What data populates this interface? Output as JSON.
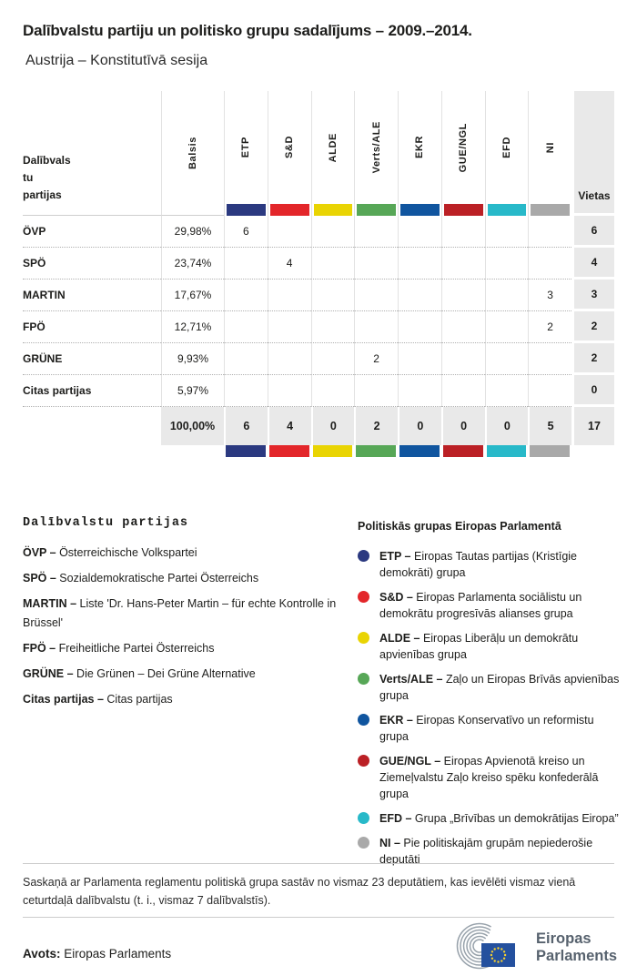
{
  "title": "Dalībvalstu partiju un politisko grupu sadalījums – 2009.–2014.",
  "subtitle": "Austrija – Konstitutīvā sesija",
  "table": {
    "party_header_lines": [
      "Dalībvals",
      "tu",
      "partijas"
    ],
    "votes_header": "Balsis",
    "seats_header": "Vietas",
    "groups": [
      {
        "code": "ETP",
        "color": "#2b3980"
      },
      {
        "code": "S&D",
        "color": "#e3262a"
      },
      {
        "code": "ALDE",
        "color": "#e9d403"
      },
      {
        "code": "Verts/ALE",
        "color": "#57a757"
      },
      {
        "code": "EKR",
        "color": "#10559f"
      },
      {
        "code": "GUE/NGL",
        "color": "#bb2025"
      },
      {
        "code": "EFD",
        "color": "#28b9c9"
      },
      {
        "code": "NI",
        "color": "#a9a9a9"
      }
    ],
    "rows": [
      {
        "party": "ÖVP",
        "votes": "29,98%",
        "seats": [
          "6",
          "",
          "",
          "",
          "",
          "",
          "",
          ""
        ],
        "total": "6"
      },
      {
        "party": "SPÖ",
        "votes": "23,74%",
        "seats": [
          "",
          "4",
          "",
          "",
          "",
          "",
          "",
          ""
        ],
        "total": "4"
      },
      {
        "party": "MARTIN",
        "votes": "17,67%",
        "seats": [
          "",
          "",
          "",
          "",
          "",
          "",
          "",
          "3"
        ],
        "total": "3"
      },
      {
        "party": "FPÖ",
        "votes": "12,71%",
        "seats": [
          "",
          "",
          "",
          "",
          "",
          "",
          "",
          "2"
        ],
        "total": "2"
      },
      {
        "party": "GRÜNE",
        "votes": "9,93%",
        "seats": [
          "",
          "",
          "",
          "2",
          "",
          "",
          "",
          ""
        ],
        "total": "2"
      },
      {
        "party": "Citas partijas",
        "votes": "5,97%",
        "seats": [
          "",
          "",
          "",
          "",
          "",
          "",
          "",
          ""
        ],
        "total": "0"
      }
    ],
    "total_row": {
      "votes": "100,00%",
      "seats": [
        "6",
        "4",
        "0",
        "2",
        "0",
        "0",
        "0",
        "5"
      ],
      "total": "17"
    }
  },
  "party_legend": {
    "heading": "Dalībvalstu partijas",
    "sep": " – ",
    "items": [
      {
        "abbr": "ÖVP",
        "name": "Österreichische Volkspartei"
      },
      {
        "abbr": "SPÖ",
        "name": "Sozialdemokratische Partei Österreichs"
      },
      {
        "abbr": "MARTIN",
        "name": "Liste 'Dr. Hans-Peter Martin – für echte Kontrolle in Brüssel'"
      },
      {
        "abbr": "FPÖ",
        "name": "Freiheitliche Partei Österreichs"
      },
      {
        "abbr": "GRÜNE",
        "name": "Die Grünen – Dei Grüne Alternative"
      },
      {
        "abbr": "Citas partijas",
        "name": "Citas partijas"
      }
    ]
  },
  "group_legend": {
    "heading": "Politiskās grupas Eiropas Parlamentā",
    "sep": " – ",
    "items": [
      {
        "abbr": "ETP",
        "color": "#2b3980",
        "name": "Eiropas Tautas partijas (Kristīgie demokrāti) grupa"
      },
      {
        "abbr": "S&D",
        "color": "#e3262a",
        "name": "Eiropas Parlamenta sociālistu un demokrātu progresīvās alianses grupa"
      },
      {
        "abbr": "ALDE",
        "color": "#e9d403",
        "name": "Eiropas Liberāļu un demokrātu apvienības grupa"
      },
      {
        "abbr": "Verts/ALE",
        "color": "#57a757",
        "name": "Zaļo un Eiropas Brīvās apvienības grupa"
      },
      {
        "abbr": "EKR",
        "color": "#10559f",
        "name": "Eiropas Konservatīvo un reformistu grupa"
      },
      {
        "abbr": "GUE/NGL",
        "color": "#bb2025",
        "name": "Eiropas Apvienotā kreiso un Ziemeļvalstu Zaļo kreiso spēku konfederālā grupa"
      },
      {
        "abbr": "EFD",
        "color": "#28b9c9",
        "name": "Grupa „Brīvības un demokrātijas Eiropa”"
      },
      {
        "abbr": "NI",
        "color": "#a9a9a9",
        "name": "Pie politiskajām grupām nepiederošie deputāti"
      }
    ]
  },
  "footnote": "Saskaņā ar Parlamenta reglamentu politiskā grupa sastāv no vismaz 23 deputātiem, kas ievēlēti vismaz vienā ceturtdaļā dalībvalstu (t. i., vismaz 7 dalībvalstīs).",
  "source": {
    "label": "Avots:",
    "value": "Eiropas Parlaments"
  },
  "logo": {
    "line1": "Eiropas",
    "line2": "Parlaments"
  },
  "chart_data": {
    "type": "table",
    "title": "Dalībvalstu partiju un politisko grupu sadalījums – 2009.–2014.",
    "subtitle": "Austrija – Konstitutīvā sesija",
    "columns": [
      "Dalībvalstu partijas",
      "Balsis",
      "ETP",
      "S&D",
      "ALDE",
      "Verts/ALE",
      "EKR",
      "GUE/NGL",
      "EFD",
      "NI",
      "Vietas"
    ],
    "rows": [
      [
        "ÖVP",
        "29,98%",
        6,
        "",
        "",
        "",
        "",
        "",
        "",
        "",
        6
      ],
      [
        "SPÖ",
        "23,74%",
        "",
        4,
        "",
        "",
        "",
        "",
        "",
        "",
        4
      ],
      [
        "MARTIN",
        "17,67%",
        "",
        "",
        "",
        "",
        "",
        "",
        "",
        3,
        3
      ],
      [
        "FPÖ",
        "12,71%",
        "",
        "",
        "",
        "",
        "",
        "",
        "",
        2,
        2
      ],
      [
        "GRÜNE",
        "9,93%",
        "",
        "",
        "",
        2,
        "",
        "",
        "",
        "",
        2
      ],
      [
        "Citas partijas",
        "5,97%",
        "",
        "",
        "",
        "",
        "",
        "",
        "",
        "",
        0
      ]
    ],
    "totals": [
      "",
      "100,00%",
      6,
      4,
      0,
      2,
      0,
      0,
      0,
      5,
      17
    ],
    "group_colors": {
      "ETP": "#2b3980",
      "S&D": "#e3262a",
      "ALDE": "#e9d403",
      "Verts/ALE": "#57a757",
      "EKR": "#10559f",
      "GUE/NGL": "#bb2025",
      "EFD": "#28b9c9",
      "NI": "#a9a9a9"
    }
  }
}
